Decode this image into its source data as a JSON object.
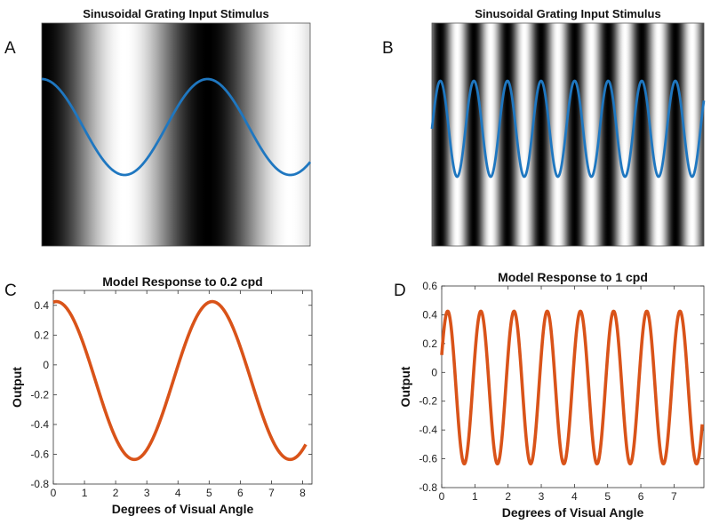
{
  "panel_letters": [
    "A",
    "B",
    "C",
    "D"
  ],
  "chart_data": [
    {
      "type": "line",
      "panel": "A",
      "title": "Sinusoidal Grating Input Stimulus",
      "background": "sinusoidal-grating",
      "cycles_shown": 1.62,
      "series": [
        {
          "name": "grating profile",
          "color": "#1f77c0",
          "form": "cosine",
          "cycles": 1.62
        }
      ]
    },
    {
      "type": "line",
      "panel": "B",
      "title": "Sinusoidal Grating Input Stimulus",
      "background": "sinusoidal-grating",
      "cycles_shown": 8.1,
      "series": [
        {
          "name": "grating profile",
          "color": "#1f77c0",
          "form": "sine",
          "cycles": 8.1
        }
      ]
    },
    {
      "type": "line",
      "panel": "C",
      "title": "Model Response to 0.2 cpd",
      "xlabel": "Degrees of Visual Angle",
      "ylabel": "Output",
      "xlim": [
        0,
        8.3
      ],
      "ylim": [
        -0.8,
        0.5
      ],
      "xticks": [
        0,
        1,
        2,
        3,
        4,
        5,
        6,
        7,
        8
      ],
      "yticks": [
        -0.8,
        -0.6,
        -0.4,
        -0.2,
        0,
        0.2,
        0.4
      ],
      "ytick_labels": [
        "-0.8",
        "-0.6",
        "-0.4",
        "-0.2",
        "0",
        "0.2",
        "0.4"
      ],
      "series": [
        {
          "name": "model response",
          "color": "#d95319",
          "frequency_cpd": 0.2,
          "amplitude": 0.53,
          "offset": -0.105,
          "phase": 0.1,
          "x_start": 0,
          "x_end": 8.1,
          "peak_value": 0.42,
          "trough_value": -0.63
        }
      ]
    },
    {
      "type": "line",
      "panel": "D",
      "title": "Model Response to 1 cpd",
      "xlabel": "Degrees of Visual Angle",
      "ylabel": "Output",
      "xlim": [
        0,
        7.9
      ],
      "ylim": [
        -0.8,
        0.6
      ],
      "xticks": [
        0,
        1,
        2,
        3,
        4,
        5,
        6,
        7
      ],
      "yticks": [
        -0.8,
        -0.6,
        -0.4,
        -0.2,
        0,
        0.2,
        0.4,
        0.6
      ],
      "ytick_labels": [
        "-0.8",
        "-0.6",
        "-0.4",
        "-0.2",
        "0",
        "0.2",
        "0.4",
        "0.6"
      ],
      "series": [
        {
          "name": "model response",
          "color": "#d95319",
          "frequency_cpd": 1,
          "amplitude": 0.53,
          "offset": -0.105,
          "phase": 0.18,
          "x_start": 0,
          "x_end": 7.85,
          "peak_value": 0.42,
          "trough_value": -0.63
        }
      ]
    }
  ]
}
